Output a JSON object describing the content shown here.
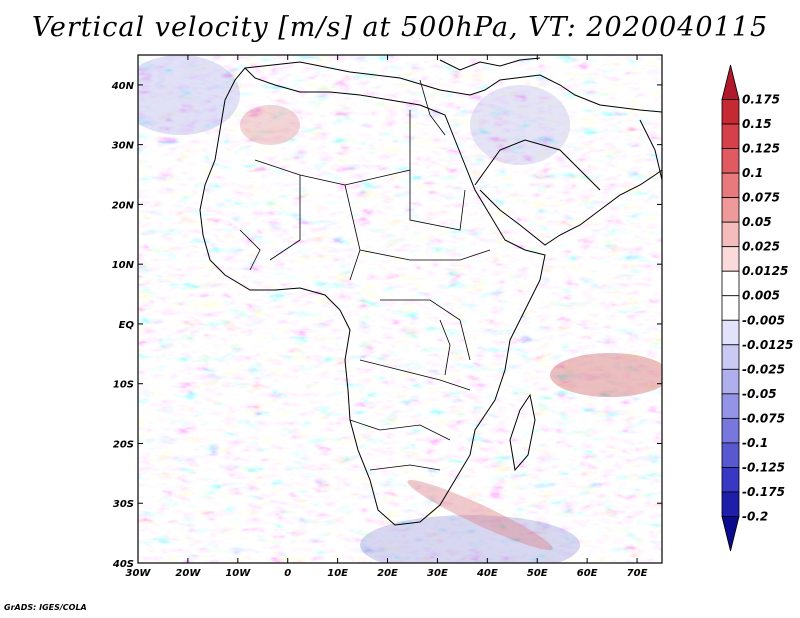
{
  "title": "Vertical velocity [m/s] at 500hPa, VT: 2020040115",
  "credit": "GrADS: IGES/COLA",
  "map": {
    "lat_labels": [
      "40N",
      "30N",
      "20N",
      "10N",
      "EQ",
      "10S",
      "20S",
      "30S",
      "40S"
    ],
    "lon_labels": [
      "30W",
      "20W",
      "10W",
      "0",
      "10E",
      "20E",
      "30E",
      "40E",
      "50E",
      "60E",
      "70E"
    ],
    "lon_range": [
      -30,
      75
    ],
    "lat_range": [
      -40,
      45
    ]
  },
  "colorbar": {
    "labels": [
      "0.175",
      "0.15",
      "0.125",
      "0.1",
      "0.075",
      "0.05",
      "0.025",
      "0.0125",
      "0.005",
      "-0.005",
      "-0.0125",
      "-0.025",
      "-0.05",
      "-0.075",
      "-0.1",
      "-0.125",
      "-0.175",
      "-0.2"
    ],
    "colors": [
      "#b2182b",
      "#c52a33",
      "#d6404a",
      "#e05a60",
      "#e87a7c",
      "#ef9a9a",
      "#f5bcbc",
      "#fadada",
      "#ffffff",
      "#ffffff",
      "#e2e2fa",
      "#c9c9f4",
      "#afafee",
      "#9494e6",
      "#7777dd",
      "#5858d1",
      "#3838c4",
      "#1e1eaa",
      "#0a0a8c"
    ]
  }
}
